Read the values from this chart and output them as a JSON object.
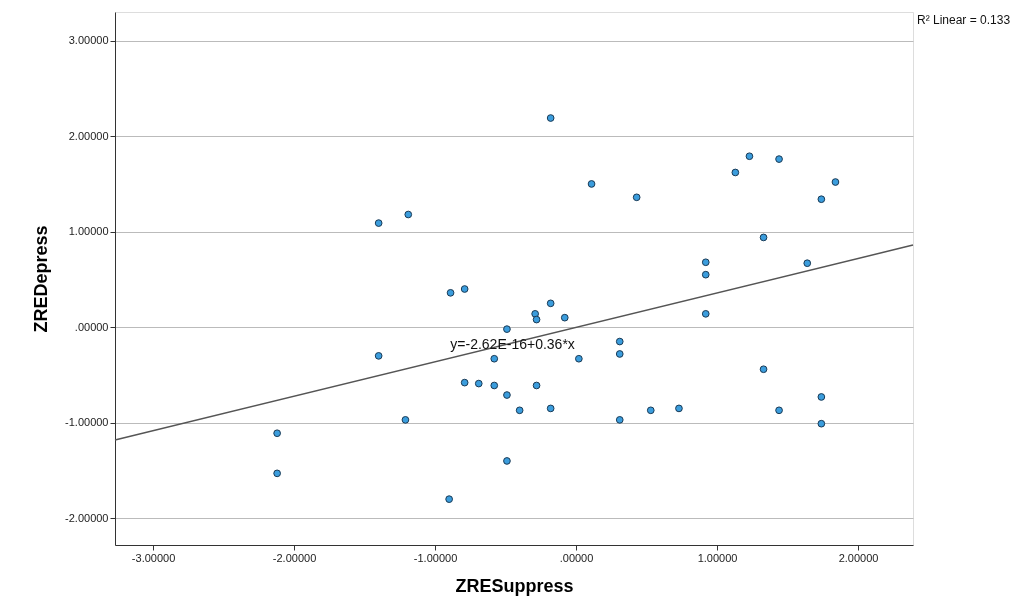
{
  "chart_data": {
    "type": "scatter",
    "xlabel": "ZRESuppress",
    "ylabel": "ZREDepress",
    "xlim": [
      -3.27,
      2.39
    ],
    "ylim": [
      -2.28,
      3.3
    ],
    "xticks": [
      {
        "value": -3,
        "label": "-3.00000"
      },
      {
        "value": -2,
        "label": "-2.00000"
      },
      {
        "value": -1,
        "label": "-1.00000"
      },
      {
        "value": 0,
        "label": ".00000"
      },
      {
        "value": 1,
        "label": "1.00000"
      },
      {
        "value": 2,
        "label": "2.00000"
      }
    ],
    "yticks": [
      {
        "value": -2,
        "label": "-2.00000"
      },
      {
        "value": -1,
        "label": "-1.00000"
      },
      {
        "value": 0,
        "label": ".00000"
      },
      {
        "value": 1,
        "label": "1.00000"
      },
      {
        "value": 2,
        "label": "2.00000"
      },
      {
        "value": 3,
        "label": "3.00000"
      }
    ],
    "grid": "y",
    "annotations": [
      {
        "text": "y=-2.62E-16+0.36*x",
        "x": -0.45,
        "y": -0.19
      },
      "R² Linear = 0.133"
    ],
    "series": [
      {
        "type": "scatter",
        "marker": "circle",
        "color": "#3b9ddd",
        "x": [
          -1.4,
          -1.21,
          -2.12,
          -2.12,
          -0.9,
          -0.79,
          -0.69,
          -0.58,
          -0.58,
          -0.49,
          -0.49,
          -0.4,
          -0.49,
          -0.18,
          -0.28,
          0.02,
          0.31,
          0.31,
          0.31,
          0.53,
          0.73,
          1.33,
          1.44,
          1.74,
          1.74,
          -0.18,
          -1.19,
          -0.89,
          -0.79,
          -0.29,
          -0.28,
          -0.18,
          -0.08,
          0.11,
          0.43,
          1.13,
          1.23,
          1.44,
          1.84,
          1.74,
          1.33,
          0.92,
          0.92,
          1.64,
          0.92,
          -1.4
        ],
        "values": [
          -0.3,
          -0.97,
          -1.11,
          -1.53,
          -1.8,
          -0.58,
          -0.59,
          -0.61,
          -0.33,
          -0.71,
          -1.4,
          -0.87,
          -0.02,
          -0.85,
          -0.61,
          -0.33,
          -0.15,
          -0.28,
          -0.97,
          -0.87,
          -0.85,
          -0.44,
          -0.87,
          -0.73,
          -1.01,
          2.19,
          1.18,
          0.36,
          0.4,
          0.14,
          0.08,
          0.25,
          0.1,
          1.5,
          1.36,
          1.62,
          1.79,
          1.76,
          1.52,
          1.34,
          0.94,
          0.68,
          0.55,
          0.67,
          0.14,
          1.09
        ]
      },
      {
        "type": "line",
        "line_style": "solid",
        "color": "#555555",
        "x": [
          -3.27,
          2.39
        ],
        "values": [
          -1.18,
          0.86
        ]
      }
    ]
  }
}
